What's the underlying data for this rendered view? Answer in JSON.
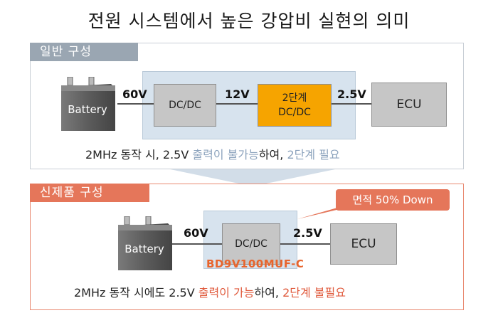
{
  "title": "전원 시스템에서 높은 강압비 실현의 의미",
  "conventional": {
    "tab_label": "일반 구성",
    "battery_label": "Battery",
    "v_battery": "60V",
    "dcdc1_label": "DC/DC",
    "v_mid": "12V",
    "dcdc2_line1": "2단계",
    "dcdc2_line2": "DC/DC",
    "v_out": "2.5V",
    "ecu_label": "ECU",
    "caption": {
      "part1": "2MHz 동작 시, 2.5V ",
      "highlight1": "출력이 불가능",
      "part2": "하여, ",
      "highlight2": "2단계 필요"
    }
  },
  "new_product": {
    "tab_label": "신제품 구성",
    "badge_label": "면적 50% Down",
    "battery_label": "Battery",
    "v_battery": "60V",
    "dcdc_label": "DC/DC",
    "v_out": "2.5V",
    "ecu_label": "ECU",
    "part_number": "BD9V100MUF-C",
    "caption": {
      "part1": "2MHz 동작 시에도 2.5V ",
      "highlight1": "출력이 가능",
      "part2": "하여, ",
      "highlight2": "2단계 불필요"
    }
  },
  "colors": {
    "accent_orange": "#f6a400",
    "accent_red": "#e5765a",
    "highlight_blue": "#8ca3bd",
    "part_number": "#e8642c"
  }
}
